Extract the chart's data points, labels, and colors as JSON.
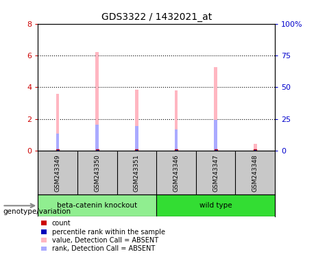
{
  "title": "GDS3322 / 1432021_at",
  "samples": [
    "GSM243349",
    "GSM243350",
    "GSM243351",
    "GSM243346",
    "GSM243347",
    "GSM243348"
  ],
  "values_absent": [
    3.6,
    6.2,
    3.85,
    3.8,
    5.25,
    0.45
  ],
  "rank_absent": [
    1.1,
    1.65,
    1.55,
    1.35,
    1.95,
    0.12
  ],
  "ylim_left": [
    0,
    8
  ],
  "ylim_right": [
    0,
    100
  ],
  "yticks_left": [
    0,
    2,
    4,
    6,
    8
  ],
  "yticks_right": [
    0,
    25,
    50,
    75,
    100
  ],
  "yticklabels_right": [
    "0",
    "25",
    "50",
    "75",
    "100%"
  ],
  "left_tick_color": "#CC0000",
  "right_tick_color": "#0000CC",
  "bar_color_absent": "#FFB6C1",
  "rank_bar_color_absent": "#AAAAFF",
  "dot_color_red": "#CC0000",
  "dot_color_blue": "#0000BB",
  "plot_bg": "#FFFFFF",
  "sample_cell_color": "#C8C8C8",
  "group_cell_ko_color": "#90EE90",
  "group_cell_wt_color": "#33DD33",
  "legend_items": [
    {
      "color": "#CC0000",
      "label": "count"
    },
    {
      "color": "#0000BB",
      "label": "percentile rank within the sample"
    },
    {
      "color": "#FFB6C1",
      "label": "value, Detection Call = ABSENT"
    },
    {
      "color": "#AAAAFF",
      "label": "rank, Detection Call = ABSENT"
    }
  ],
  "genotype_label": "genotype/variation",
  "n_ko": 3,
  "n_wt": 3,
  "bar_width": 0.08,
  "dot_size": 40
}
